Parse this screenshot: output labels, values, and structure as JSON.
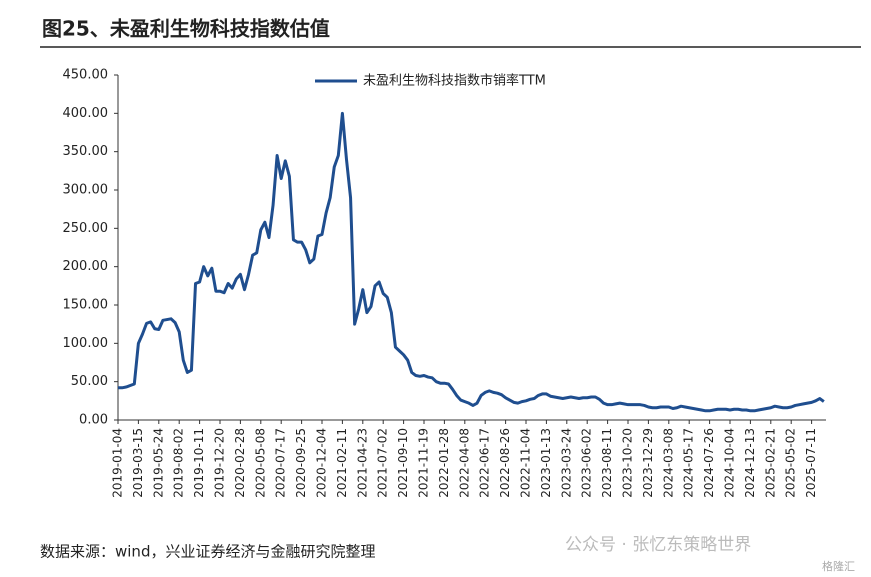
{
  "chart_data": {
    "type": "line",
    "title": "图25、未盈利生物科技指数估值",
    "source": "数据来源：wind，兴业证券经济与金融研究院整理",
    "watermark": "公众号 · 张忆东策略世界",
    "watermark_logo": "格隆汇",
    "categories": [
      "2019-01-04",
      null,
      null,
      null,
      null,
      "2019-03-15",
      null,
      null,
      null,
      null,
      "2019-05-24",
      null,
      null,
      null,
      null,
      "2019-08-02",
      null,
      null,
      null,
      null,
      "2019-10-11",
      null,
      null,
      null,
      null,
      "2019-12-20",
      null,
      null,
      null,
      null,
      "2020-02-28",
      null,
      null,
      null,
      null,
      "2020-05-08",
      null,
      null,
      null,
      null,
      "2020-07-17",
      null,
      null,
      null,
      null,
      "2020-09-25",
      null,
      null,
      null,
      null,
      "2020-12-04",
      null,
      null,
      null,
      null,
      "2021-02-11",
      null,
      null,
      null,
      null,
      "2021-04-23",
      null,
      null,
      null,
      null,
      "2021-07-02",
      null,
      null,
      null,
      null,
      "2021-09-10",
      null,
      null,
      null,
      null,
      "2021-11-19",
      null,
      null,
      null,
      null,
      "2022-01-28",
      null,
      null,
      null,
      null,
      "2022-04-08",
      null,
      null,
      null,
      null,
      "2022-06-17",
      null,
      null,
      null,
      null,
      "2022-08-26",
      null,
      null,
      null,
      null,
      "2022-11-04",
      null,
      null,
      null,
      null,
      "2023-01-13",
      null,
      null,
      null,
      null,
      "2023-03-24",
      null,
      null,
      null,
      null,
      "2023-06-02",
      null,
      null,
      null,
      null,
      "2023-08-11",
      null,
      null,
      null,
      null,
      "2023-10-20",
      null,
      null,
      null,
      null,
      "2023-12-29",
      null,
      null,
      null,
      null,
      "2024-03-08",
      null,
      null,
      null,
      null,
      "2024-05-17",
      null,
      null,
      null,
      null,
      "2024-07-26",
      null,
      null,
      null,
      null,
      "2024-10-04",
      null,
      null,
      null,
      null,
      "2024-12-13",
      null,
      null,
      null,
      null,
      "2025-02-21",
      null,
      null,
      null,
      null,
      "2025-05-02",
      null,
      null,
      null,
      null,
      "2025-07-11",
      null,
      null,
      null
    ],
    "series": [
      {
        "name": "未盈利生物科技指数市销率TTM",
        "color": "#1f4e8f",
        "values": [
          42,
          42,
          43,
          45,
          47,
          100,
          112,
          126,
          128,
          119,
          118,
          130,
          131,
          132,
          127,
          115,
          78,
          62,
          65,
          178,
          180,
          200,
          188,
          198,
          168,
          168,
          166,
          178,
          172,
          184,
          190,
          170,
          190,
          215,
          218,
          248,
          258,
          238,
          280,
          345,
          315,
          338,
          318,
          235,
          232,
          232,
          222,
          205,
          210,
          240,
          242,
          270,
          290,
          330,
          345,
          400,
          340,
          290,
          125,
          145,
          170,
          140,
          148,
          175,
          180,
          165,
          160,
          140,
          95,
          90,
          85,
          78,
          62,
          58,
          57,
          58,
          56,
          55,
          50,
          48,
          48,
          47,
          40,
          32,
          26,
          24,
          22,
          19,
          22,
          32,
          36,
          38,
          36,
          35,
          33,
          29,
          26,
          23,
          22,
          24,
          25,
          27,
          28,
          32,
          34,
          34,
          31,
          30,
          29,
          28,
          29,
          30,
          29,
          28,
          29,
          29,
          30,
          30,
          27,
          22,
          20,
          20,
          21,
          22,
          21,
          20,
          20,
          20,
          20,
          19,
          17,
          16,
          16,
          17,
          17,
          17,
          15,
          16,
          18,
          17,
          16,
          15,
          14,
          13,
          12,
          12,
          13,
          14,
          14,
          14,
          13,
          14,
          14,
          13,
          13,
          12,
          12,
          13,
          14,
          15,
          16,
          18,
          17,
          16,
          16,
          17,
          19,
          20,
          21,
          22,
          23,
          25,
          28,
          24
        ]
      }
    ],
    "ylim": [
      0,
      450
    ],
    "yticks": [
      {
        "value": 0,
        "label": "0.00"
      },
      {
        "value": 50,
        "label": "50.00"
      },
      {
        "value": 100,
        "label": "100.00"
      },
      {
        "value": 150,
        "label": "150.00"
      },
      {
        "value": 200,
        "label": "200.00"
      },
      {
        "value": 250,
        "label": "250.00"
      },
      {
        "value": 300,
        "label": "300.00"
      },
      {
        "value": 350,
        "label": "350.00"
      },
      {
        "value": 400,
        "label": "400.00"
      },
      {
        "value": 450,
        "label": "450.00"
      }
    ],
    "legend": "top"
  }
}
